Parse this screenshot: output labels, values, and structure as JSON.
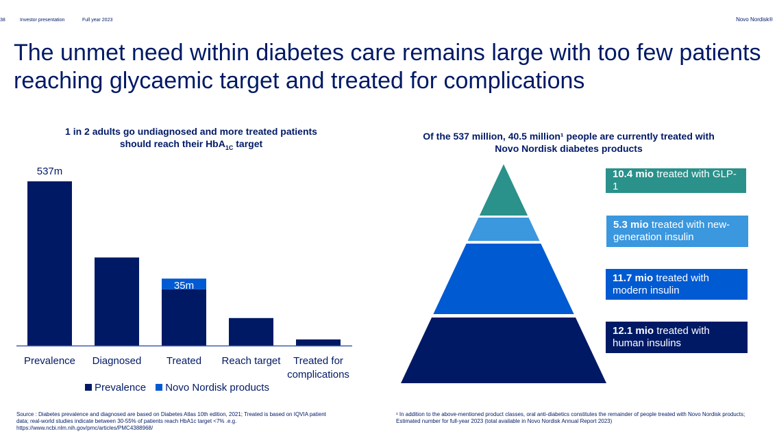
{
  "header": {
    "page_number": "38",
    "section": "Investor presentation",
    "period": "Full year 2023",
    "brand": "Novo Nordisk®"
  },
  "title": "The unmet need within diabetes care remains large with too few patients reaching glycaemic target and treated for complications",
  "left_panel": {
    "subtitle_line1": "1 in 2 adults go undiagnosed and more treated patients",
    "subtitle_line2_pre": "should reach their HbA",
    "subtitle_line2_sub": "1C",
    "subtitle_line2_post": " target"
  },
  "right_panel": {
    "subtitle_line1": "Of the 537 million, 40.5 million¹ people are currently treated with",
    "subtitle_line2": "Novo Nordisk diabetes products"
  },
  "chart_data": [
    {
      "type": "bar",
      "categories": [
        "Prevalence",
        "Diagnosed",
        "Treated",
        "Reach target",
        "Treated for complications"
      ],
      "series": [
        {
          "name": "Prevalence",
          "values": [
            537,
            288,
            184,
            90,
            20
          ],
          "color": "#001965"
        },
        {
          "name": "Novo Nordisk products",
          "values": [
            0,
            0,
            35,
            0,
            0
          ],
          "color": "#005AD2"
        }
      ],
      "data_labels": {
        "Prevalence": "537m",
        "Treated": "35m"
      },
      "ylim": [
        0,
        537
      ],
      "grid": false,
      "legend": "bottom"
    },
    {
      "type": "pyramid",
      "tiers": [
        {
          "value_label": "10.4 mio",
          "label": "treated with GLP-1",
          "value": 10.4,
          "color": "#2A918B"
        },
        {
          "value_label": "5.3 mio",
          "label": "treated with new-generation insulin",
          "value": 5.3,
          "color": "#3B97DE"
        },
        {
          "value_label": "11.7 mio",
          "label": "treated with modern insulin",
          "value": 11.7,
          "color": "#005AD2"
        },
        {
          "value_label": "12.1 mio",
          "label": "treated with human insulins",
          "value": 12.1,
          "color": "#001965"
        }
      ]
    }
  ],
  "footer": {
    "source": "Source : Diabetes prevalence and diagnosed are based on Diabetes Atlas 10th edition, 2021; Treated is based on IQVIA patient data; real-world studies indicate between 30-55% of patients reach HbA1c target <7% .e.g. https://www.ncbi.nlm.nih.gov/pmc/articles/PMC4388968/",
    "footnote": "¹ In addition to the above-mentioned product classes, oral anti-diabetics constitutes the remainder of people treated with Novo Nordisk products; Estimated number for full-year 2023 (total available in Novo Nordisk Annual Report 2023)"
  }
}
